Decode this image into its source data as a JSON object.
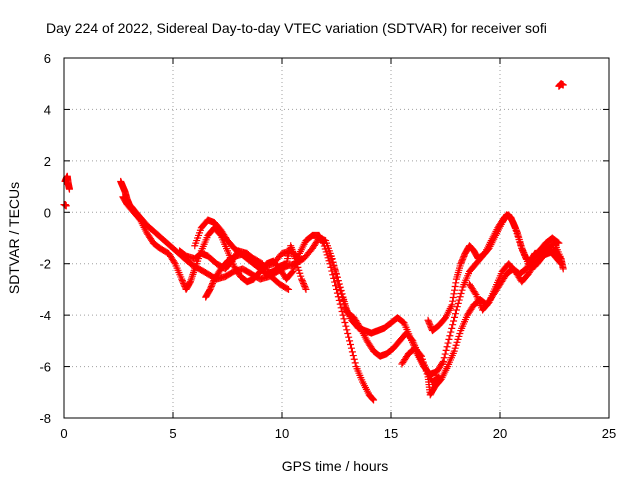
{
  "chart_data": {
    "type": "scatter",
    "title": "Day 224 of 2022, Sidereal Day-to-day VTEC variation (SDTVAR) for receiver sofi",
    "xlabel": "GPS time / hours",
    "ylabel": "SDTVAR / TECUs",
    "xlim": [
      0,
      25
    ],
    "ylim": [
      -8,
      6
    ],
    "x_ticks": [
      0,
      5,
      10,
      15,
      20,
      25
    ],
    "y_ticks": [
      -8,
      -6,
      -4,
      -2,
      0,
      2,
      4,
      6
    ],
    "grid": true,
    "marker": "+",
    "series": [
      {
        "name": "SDTVAR",
        "color": "#ff0000",
        "segments": [
          [
            [
              0.0,
              0.3
            ],
            [
              0.05,
              0.3
            ],
            [
              0.1,
              0.25
            ]
          ],
          [
            [
              0.05,
              1.2
            ],
            [
              0.1,
              1.3
            ],
            [
              0.15,
              1.4
            ],
            [
              0.2,
              1.1
            ],
            [
              0.25,
              0.9
            ]
          ],
          [
            [
              2.6,
              1.2
            ],
            [
              2.7,
              1.0
            ],
            [
              2.8,
              0.8
            ],
            [
              2.9,
              0.5
            ],
            [
              3.0,
              0.3
            ],
            [
              3.2,
              0.1
            ],
            [
              3.5,
              -0.2
            ],
            [
              3.8,
              -0.5
            ],
            [
              4.2,
              -0.8
            ],
            [
              4.6,
              -1.1
            ],
            [
              5.0,
              -1.4
            ],
            [
              5.4,
              -1.7
            ],
            [
              5.8,
              -2.0
            ],
            [
              6.2,
              -2.2
            ],
            [
              6.6,
              -2.4
            ],
            [
              7.0,
              -2.6
            ],
            [
              7.4,
              -2.5
            ],
            [
              7.8,
              -2.3
            ],
            [
              8.2,
              -2.2
            ],
            [
              8.6,
              -2.4
            ],
            [
              9.0,
              -2.6
            ],
            [
              9.4,
              -2.5
            ],
            [
              9.8,
              -2.3
            ],
            [
              10.2,
              -2.1
            ],
            [
              10.6,
              -2.0
            ],
            [
              11.0,
              -1.8
            ],
            [
              11.4,
              -1.4
            ],
            [
              11.7,
              -1.0
            ],
            [
              12.0,
              -1.1
            ],
            [
              12.3,
              -1.8
            ],
            [
              12.6,
              -2.8
            ],
            [
              12.9,
              -3.7
            ],
            [
              13.2,
              -4.2
            ],
            [
              13.5,
              -4.5
            ],
            [
              13.8,
              -4.6
            ],
            [
              14.1,
              -4.7
            ],
            [
              14.4,
              -4.6
            ],
            [
              14.7,
              -4.5
            ],
            [
              15.0,
              -4.3
            ],
            [
              15.3,
              -4.1
            ],
            [
              15.6,
              -4.3
            ],
            [
              15.9,
              -4.9
            ],
            [
              16.2,
              -5.5
            ],
            [
              16.5,
              -6.0
            ],
            [
              16.8,
              -6.3
            ],
            [
              17.1,
              -6.2
            ],
            [
              17.4,
              -5.8
            ],
            [
              17.7,
              -4.8
            ],
            [
              18.0,
              -3.8
            ],
            [
              18.3,
              -2.9
            ],
            [
              18.6,
              -2.3
            ],
            [
              18.9,
              -2.0
            ],
            [
              19.2,
              -1.7
            ],
            [
              19.5,
              -1.4
            ],
            [
              19.8,
              -0.9
            ],
            [
              20.1,
              -0.4
            ],
            [
              20.3,
              -0.1
            ],
            [
              20.5,
              -0.2
            ],
            [
              20.7,
              -0.6
            ],
            [
              21.0,
              -1.4
            ],
            [
              21.3,
              -2.0
            ],
            [
              21.6,
              -2.1
            ],
            [
              21.9,
              -1.8
            ],
            [
              22.2,
              -1.4
            ],
            [
              22.5,
              -1.2
            ],
            [
              22.8,
              -1.8
            ],
            [
              22.9,
              -2.2
            ]
          ],
          [
            [
              2.7,
              0.6
            ],
            [
              2.9,
              0.3
            ],
            [
              3.2,
              0.0
            ],
            [
              3.5,
              -0.3
            ],
            [
              3.8,
              -0.8
            ],
            [
              4.1,
              -1.2
            ],
            [
              4.4,
              -1.4
            ],
            [
              4.8,
              -1.6
            ],
            [
              5.1,
              -2.0
            ],
            [
              5.4,
              -2.6
            ],
            [
              5.6,
              -3.0
            ],
            [
              5.8,
              -2.7
            ],
            [
              6.0,
              -2.2
            ],
            [
              6.3,
              -1.5
            ],
            [
              6.6,
              -0.9
            ],
            [
              6.9,
              -0.6
            ],
            [
              7.2,
              -0.9
            ],
            [
              7.5,
              -1.5
            ],
            [
              7.8,
              -2.1
            ],
            [
              8.1,
              -2.5
            ],
            [
              8.4,
              -2.7
            ],
            [
              8.7,
              -2.6
            ],
            [
              9.0,
              -2.3
            ],
            [
              9.3,
              -2.0
            ],
            [
              9.6,
              -1.9
            ],
            [
              9.9,
              -2.2
            ],
            [
              10.2,
              -2.6
            ],
            [
              10.5,
              -2.3
            ],
            [
              10.8,
              -1.6
            ],
            [
              11.1,
              -1.1
            ],
            [
              11.4,
              -0.9
            ],
            [
              11.7,
              -0.9
            ],
            [
              11.9,
              -1.2
            ],
            [
              12.2,
              -2.0
            ],
            [
              12.5,
              -3.0
            ],
            [
              12.8,
              -4.0
            ],
            [
              13.1,
              -5.0
            ],
            [
              13.4,
              -6.0
            ],
            [
              13.7,
              -6.6
            ],
            [
              14.0,
              -7.1
            ],
            [
              14.2,
              -7.3
            ]
          ],
          [
            [
              6.0,
              -1.3
            ],
            [
              6.3,
              -0.6
            ],
            [
              6.6,
              -0.3
            ],
            [
              6.9,
              -0.4
            ],
            [
              7.2,
              -0.7
            ],
            [
              7.5,
              -1.1
            ],
            [
              7.8,
              -1.4
            ],
            [
              8.1,
              -1.6
            ],
            [
              8.4,
              -1.8
            ],
            [
              8.7,
              -2.0
            ],
            [
              9.0,
              -2.2
            ],
            [
              9.3,
              -2.4
            ],
            [
              9.6,
              -2.3
            ],
            [
              9.9,
              -2.1
            ],
            [
              10.2,
              -2.0
            ],
            [
              10.4,
              -1.3
            ],
            [
              10.6,
              -1.8
            ],
            [
              10.9,
              -2.6
            ],
            [
              11.1,
              -3.0
            ]
          ],
          [
            [
              5.3,
              -1.5
            ],
            [
              5.6,
              -1.7
            ],
            [
              6.0,
              -1.8
            ],
            [
              6.3,
              -1.6
            ],
            [
              6.6,
              -1.7
            ],
            [
              7.0,
              -2.0
            ],
            [
              7.4,
              -2.2
            ],
            [
              7.7,
              -1.9
            ],
            [
              8.0,
              -1.5
            ],
            [
              8.4,
              -1.6
            ],
            [
              8.8,
              -1.9
            ],
            [
              9.2,
              -2.1
            ],
            [
              9.6,
              -2.0
            ],
            [
              10.0,
              -1.6
            ],
            [
              10.4,
              -1.5
            ],
            [
              10.8,
              -1.8
            ]
          ],
          [
            [
              6.5,
              -3.3
            ],
            [
              6.7,
              -3.0
            ],
            [
              6.9,
              -2.6
            ],
            [
              7.2,
              -2.2
            ],
            [
              7.5,
              -1.9
            ],
            [
              7.9,
              -1.7
            ],
            [
              8.3,
              -1.6
            ],
            [
              8.7,
              -1.8
            ],
            [
              9.1,
              -2.0
            ],
            [
              9.5,
              -2.5
            ],
            [
              9.9,
              -2.8
            ],
            [
              10.3,
              -3.0
            ]
          ],
          [
            [
              12.2,
              -1.6
            ],
            [
              12.5,
              -2.4
            ],
            [
              12.8,
              -3.3
            ],
            [
              13.0,
              -3.9
            ],
            [
              13.3,
              -4.1
            ],
            [
              13.6,
              -4.5
            ],
            [
              13.9,
              -5.0
            ],
            [
              14.2,
              -5.4
            ],
            [
              14.5,
              -5.6
            ],
            [
              14.8,
              -5.5
            ],
            [
              15.1,
              -5.3
            ],
            [
              15.4,
              -5.0
            ],
            [
              15.7,
              -4.7
            ],
            [
              16.0,
              -5.0
            ],
            [
              16.3,
              -5.6
            ],
            [
              16.6,
              -6.1
            ],
            [
              16.9,
              -6.6
            ],
            [
              17.2,
              -6.4
            ]
          ],
          [
            [
              15.5,
              -5.9
            ],
            [
              15.8,
              -5.5
            ],
            [
              16.1,
              -5.3
            ],
            [
              16.4,
              -5.6
            ],
            [
              16.7,
              -6.4
            ],
            [
              16.8,
              -7.1
            ],
            [
              17.0,
              -6.8
            ],
            [
              17.3,
              -6.5
            ],
            [
              17.6,
              -6.0
            ],
            [
              17.9,
              -5.4
            ],
            [
              18.2,
              -4.6
            ],
            [
              18.5,
              -4.0
            ],
            [
              18.8,
              -3.6
            ],
            [
              19.1,
              -3.4
            ],
            [
              19.4,
              -3.6
            ],
            [
              19.7,
              -3.2
            ],
            [
              20.0,
              -2.8
            ],
            [
              20.3,
              -2.4
            ],
            [
              20.6,
              -2.2
            ],
            [
              20.9,
              -2.4
            ],
            [
              21.2,
              -2.2
            ],
            [
              21.5,
              -1.8
            ],
            [
              21.8,
              -1.5
            ],
            [
              22.1,
              -1.2
            ],
            [
              22.4,
              -1.0
            ],
            [
              22.7,
              -1.2
            ]
          ],
          [
            [
              16.7,
              -4.2
            ],
            [
              16.9,
              -4.6
            ],
            [
              17.2,
              -4.4
            ],
            [
              17.5,
              -4.1
            ],
            [
              17.8,
              -3.6
            ],
            [
              18.0,
              -2.6
            ],
            [
              18.2,
              -2.0
            ],
            [
              18.4,
              -1.6
            ],
            [
              18.6,
              -1.3
            ],
            [
              18.8,
              -1.5
            ],
            [
              19.0,
              -1.8
            ],
            [
              19.3,
              -1.6
            ],
            [
              19.6,
              -1.1
            ],
            [
              19.9,
              -0.6
            ],
            [
              20.2,
              -0.2
            ],
            [
              20.4,
              -0.1
            ],
            [
              20.6,
              -0.4
            ],
            [
              20.8,
              -0.8
            ],
            [
              21.0,
              -1.4
            ],
            [
              21.2,
              -1.8
            ],
            [
              21.4,
              -1.9
            ],
            [
              21.6,
              -1.6
            ],
            [
              21.9,
              -1.6
            ],
            [
              22.2,
              -1.4
            ],
            [
              22.5,
              -1.7
            ],
            [
              22.8,
              -2.0
            ]
          ],
          [
            [
              18.6,
              -2.8
            ],
            [
              18.9,
              -3.2
            ],
            [
              19.2,
              -3.8
            ],
            [
              19.5,
              -3.5
            ],
            [
              19.8,
              -2.9
            ],
            [
              20.1,
              -2.3
            ],
            [
              20.4,
              -2.0
            ],
            [
              20.7,
              -2.3
            ],
            [
              21.0,
              -2.7
            ],
            [
              21.3,
              -2.4
            ],
            [
              21.6,
              -2.0
            ],
            [
              21.9,
              -1.7
            ],
            [
              22.2,
              -1.6
            ],
            [
              22.5,
              -1.5
            ],
            [
              22.8,
              -1.8
            ]
          ],
          [
            [
              22.7,
              4.9
            ],
            [
              22.8,
              5.0
            ],
            [
              22.9,
              4.95
            ]
          ]
        ]
      }
    ]
  }
}
